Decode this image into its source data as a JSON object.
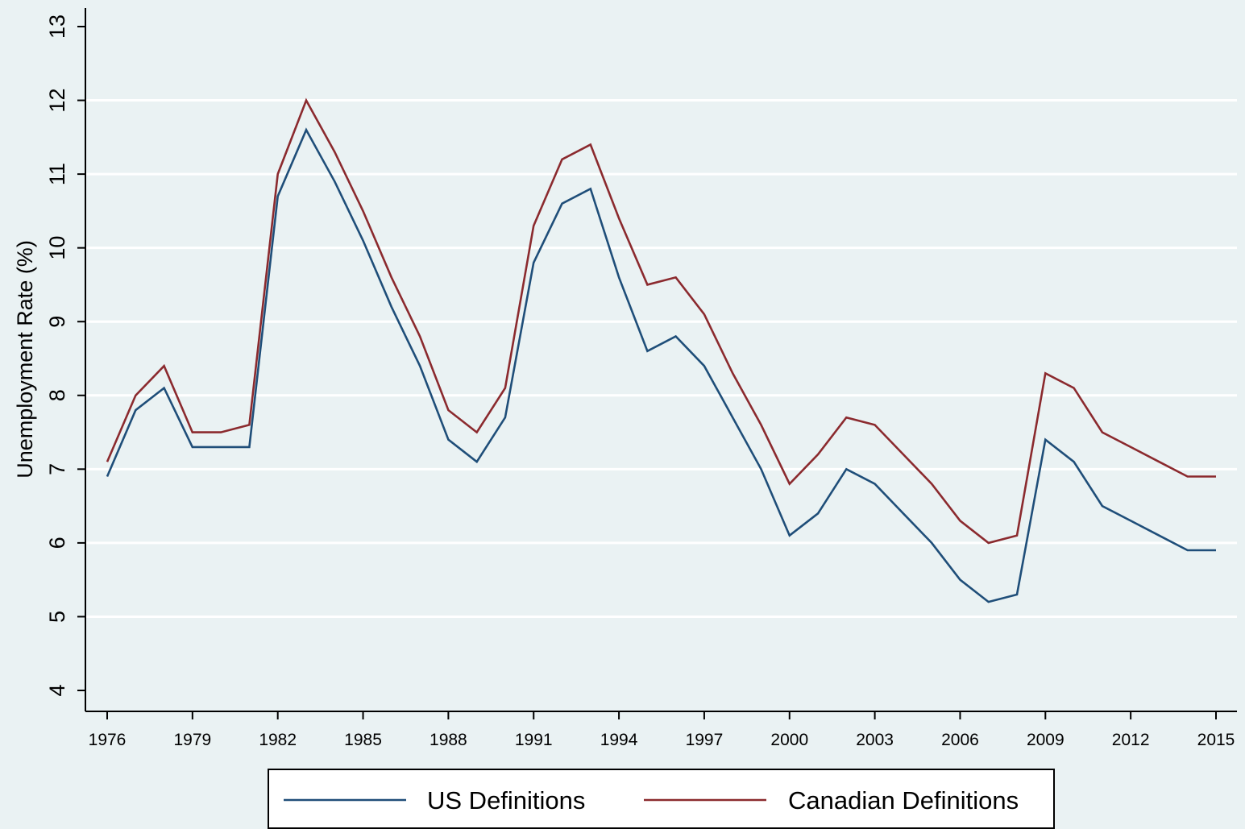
{
  "chart_data": {
    "type": "line",
    "title": "",
    "xlabel": "",
    "ylabel": "Unemployment Rate (%)",
    "xlim": [
      1976,
      2015
    ],
    "ylim": [
      4,
      13
    ],
    "x_ticks": [
      1976,
      1979,
      1982,
      1985,
      1988,
      1991,
      1994,
      1997,
      2000,
      2003,
      2006,
      2009,
      2012,
      2015
    ],
    "y_ticks": [
      4,
      5,
      6,
      7,
      8,
      9,
      10,
      11,
      12,
      13
    ],
    "grid": true,
    "legend_position": "bottom",
    "x": [
      1976,
      1977,
      1978,
      1979,
      1980,
      1981,
      1982,
      1983,
      1984,
      1985,
      1986,
      1987,
      1988,
      1989,
      1990,
      1991,
      1992,
      1993,
      1994,
      1995,
      1996,
      1997,
      1998,
      1999,
      2000,
      2001,
      2002,
      2003,
      2004,
      2005,
      2006,
      2007,
      2008,
      2009,
      2010,
      2011,
      2012,
      2013,
      2014,
      2015
    ],
    "series": [
      {
        "name": "US Definitions",
        "color": "#1f4e79",
        "values": [
          6.9,
          7.8,
          8.1,
          7.3,
          7.3,
          7.3,
          10.7,
          11.6,
          10.9,
          10.1,
          9.2,
          8.4,
          7.4,
          7.1,
          7.7,
          9.8,
          10.6,
          10.8,
          9.6,
          8.6,
          8.8,
          8.4,
          7.7,
          7.0,
          6.1,
          6.4,
          7.0,
          6.8,
          6.4,
          6.0,
          5.5,
          5.2,
          5.3,
          7.4,
          7.1,
          6.5,
          6.3,
          6.1,
          5.9,
          5.9
        ]
      },
      {
        "name": "Canadian Definitions",
        "color": "#8b2a2e",
        "values": [
          7.1,
          8.0,
          8.4,
          7.5,
          7.5,
          7.6,
          11.0,
          12.0,
          11.3,
          10.5,
          9.6,
          8.8,
          7.8,
          7.5,
          8.1,
          10.3,
          11.2,
          11.4,
          10.4,
          9.5,
          9.6,
          9.1,
          8.3,
          7.6,
          6.8,
          7.2,
          7.7,
          7.6,
          7.2,
          6.8,
          6.3,
          6.0,
          6.1,
          8.3,
          8.1,
          7.5,
          7.3,
          7.1,
          6.9,
          6.9
        ]
      }
    ]
  }
}
